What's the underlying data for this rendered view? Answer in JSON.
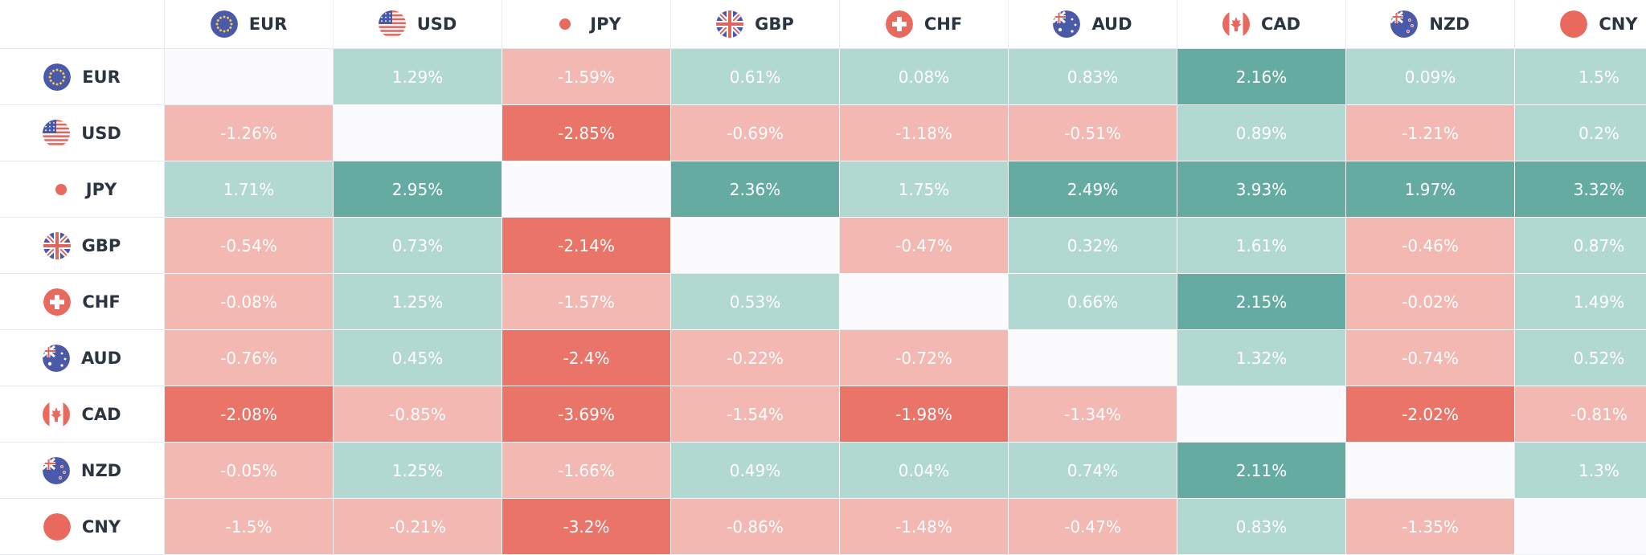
{
  "currencies": [
    {
      "code": "EUR",
      "flag": "eu-flag-icon"
    },
    {
      "code": "USD",
      "flag": "us-flag-icon"
    },
    {
      "code": "JPY",
      "flag": "jp-flag-icon"
    },
    {
      "code": "GBP",
      "flag": "gb-flag-icon"
    },
    {
      "code": "CHF",
      "flag": "ch-flag-icon"
    },
    {
      "code": "AUD",
      "flag": "au-flag-icon"
    },
    {
      "code": "CAD",
      "flag": "ca-flag-icon"
    },
    {
      "code": "NZD",
      "flag": "nz-flag-icon"
    },
    {
      "code": "CNY",
      "flag": "cn-flag-icon"
    }
  ],
  "matrix": [
    [
      "",
      "1.29%",
      "-1.59%",
      "0.61%",
      "0.08%",
      "0.83%",
      "2.16%",
      "0.09%",
      "1.5%"
    ],
    [
      "-1.26%",
      "",
      "-2.85%",
      "-0.69%",
      "-1.18%",
      "-0.51%",
      "0.89%",
      "-1.21%",
      "0.2%"
    ],
    [
      "1.71%",
      "2.95%",
      "",
      "2.36%",
      "1.75%",
      "2.49%",
      "3.93%",
      "1.97%",
      "3.32%"
    ],
    [
      "-0.54%",
      "0.73%",
      "-2.14%",
      "",
      "-0.47%",
      "0.32%",
      "1.61%",
      "-0.46%",
      "0.87%"
    ],
    [
      "-0.08%",
      "1.25%",
      "-1.57%",
      "0.53%",
      "",
      "0.66%",
      "2.15%",
      "-0.02%",
      "1.49%"
    ],
    [
      "-0.76%",
      "0.45%",
      "-2.4%",
      "-0.22%",
      "-0.72%",
      "",
      "1.32%",
      "-0.74%",
      "0.52%"
    ],
    [
      "-2.08%",
      "-0.85%",
      "-3.69%",
      "-1.54%",
      "-1.98%",
      "-1.34%",
      "",
      "-2.02%",
      "-0.81%"
    ],
    [
      "-0.05%",
      "1.25%",
      "-1.66%",
      "0.49%",
      "0.04%",
      "0.74%",
      "2.11%",
      "",
      "1.3%"
    ],
    [
      "-1.5%",
      "-0.21%",
      "-3.2%",
      "-0.86%",
      "-1.48%",
      "-0.47%",
      "0.83%",
      "-1.35%",
      ""
    ]
  ],
  "colors": {
    "positive_light": "#b2d8d2",
    "positive_strong": "#65aba1",
    "negative_light": "#f4b8b3",
    "negative_strong": "#eb7468",
    "empty": "#fbfbfd",
    "header_text": "#2b3440"
  },
  "thresholds": {
    "strong": 1.9
  }
}
